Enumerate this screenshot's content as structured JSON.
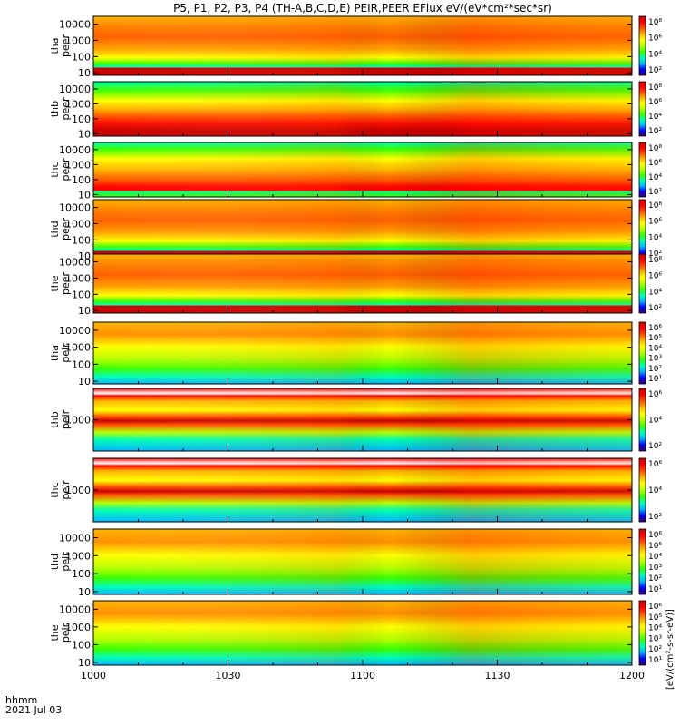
{
  "chart_data": {
    "type": "heatmap",
    "title": "P5, P1, P2, P3, P4 (TH-A,B,C,D,E) PEIR,PEER EFlux eV/(eV*cm²*sec*sr)",
    "x_tick_labels": [
      "1000",
      "1030",
      "1100",
      "1130",
      "1200"
    ],
    "x_tick_minutes": [
      0,
      30,
      60,
      90,
      120
    ],
    "x_range_minutes": [
      0,
      120
    ],
    "x_footer_line1": "hhmm",
    "x_footer_line2": "2021 Jul 03",
    "colorbar_unit_label": "[eV/(cm²-s-sr-eV)]",
    "colormap": [
      "#3a0066",
      "#0000ff",
      "#00b4ff",
      "#00ffb4",
      "#3cff00",
      "#b4ff00",
      "#ffff00",
      "#ffb400",
      "#ff5000",
      "#ff0000",
      "#c80000"
    ],
    "panels": [
      {
        "id": "tha-peer",
        "ylabel": [
          "tha",
          "peer"
        ],
        "ytick_labels": [
          "10000",
          "1000",
          "100",
          "10"
        ],
        "ytick_values": [
          10000,
          1000,
          100,
          10
        ],
        "cb_ticks": [
          "10⁸",
          "10⁶",
          "10⁴",
          "10²"
        ],
        "kind": "peer"
      },
      {
        "id": "thb-peer",
        "ylabel": [
          "thb",
          "peer"
        ],
        "ytick_labels": [
          "10000",
          "1000",
          "100",
          "10"
        ],
        "ytick_values": [
          10000,
          1000,
          100,
          10
        ],
        "cb_ticks": [
          "10⁸",
          "10⁶",
          "10⁴",
          "10²"
        ],
        "kind": "peer_b"
      },
      {
        "id": "thc-peer",
        "ylabel": [
          "thc",
          "peer"
        ],
        "ytick_labels": [
          "10000",
          "1000",
          "100",
          "10"
        ],
        "ytick_values": [
          10000,
          1000,
          100,
          10
        ],
        "cb_ticks": [
          "10⁸",
          "10⁶",
          "10⁴",
          "10²"
        ],
        "kind": "peer_c"
      },
      {
        "id": "thd-peer",
        "ylabel": [
          "thd",
          "peer"
        ],
        "ytick_labels": [
          "10000",
          "1000",
          "100",
          "10"
        ],
        "ytick_values": [
          10000,
          1000,
          100,
          10
        ],
        "cb_ticks": [
          "10⁸",
          "10⁶",
          "10⁴",
          "10²"
        ],
        "kind": "peer"
      },
      {
        "id": "the-peer",
        "ylabel": [
          "the",
          "peer"
        ],
        "ytick_labels": [
          "10000",
          "1000",
          "100",
          "10"
        ],
        "ytick_values": [
          10000,
          1000,
          100,
          10
        ],
        "cb_ticks": [
          "10⁸",
          "10⁶",
          "10⁴",
          "10²"
        ],
        "kind": "peer"
      },
      {
        "id": "tha-peir",
        "ylabel": [
          "tha",
          "peir"
        ],
        "ytick_labels": [
          "10000",
          "1000",
          "100",
          "10"
        ],
        "ytick_values": [
          10000,
          1000,
          100,
          10
        ],
        "cb_ticks": [
          "10⁶",
          "10⁵",
          "10⁴",
          "10³",
          "10²",
          "10¹"
        ],
        "kind": "peir"
      },
      {
        "id": "thb-peir",
        "ylabel": [
          "thb",
          "peir"
        ],
        "ytick_labels": [
          "1000"
        ],
        "ytick_values": [
          1000
        ],
        "cb_ticks": [
          "10⁶",
          "10⁴",
          "10²"
        ],
        "kind": "peir_band"
      },
      {
        "id": "thc-peir",
        "ylabel": [
          "thc",
          "peir"
        ],
        "ytick_labels": [
          "1000"
        ],
        "ytick_values": [
          1000
        ],
        "cb_ticks": [
          "10⁶",
          "10⁴",
          "10²"
        ],
        "kind": "peir_band"
      },
      {
        "id": "thd-peir",
        "ylabel": [
          "thd",
          "peir"
        ],
        "ytick_labels": [
          "10000",
          "1000",
          "100",
          "10"
        ],
        "ytick_values": [
          10000,
          1000,
          100,
          10
        ],
        "cb_ticks": [
          "10⁶",
          "10⁵",
          "10⁴",
          "10³",
          "10²",
          "10¹"
        ],
        "kind": "peir"
      },
      {
        "id": "the-peir",
        "ylabel": [
          "the",
          "peir"
        ],
        "ytick_labels": [
          "10000",
          "1000",
          "100",
          "10"
        ],
        "ytick_values": [
          10000,
          1000,
          100,
          10
        ],
        "cb_ticks": [
          "10⁶",
          "10⁵",
          "10⁴",
          "10³",
          "10²",
          "10¹"
        ],
        "kind": "peir"
      }
    ]
  }
}
